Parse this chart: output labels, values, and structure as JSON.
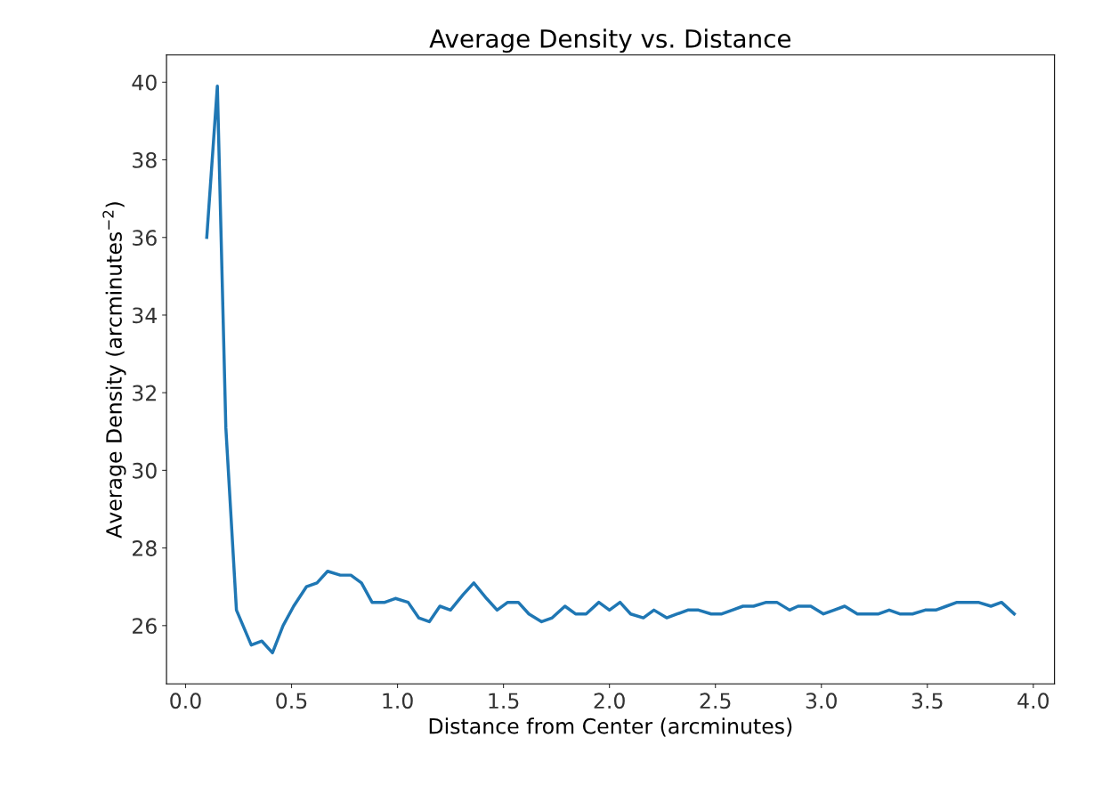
{
  "chart_data": {
    "type": "line",
    "title": "Average Density vs. Distance",
    "xlabel": "Distance from Center (arcminutes)",
    "ylabel": "Average Density (arcminutes$^{−2}$)",
    "xlim": [
      -0.09,
      4.1
    ],
    "ylim": [
      24.5,
      40.7
    ],
    "xticks": [
      {
        "value": 0,
        "label": "0.0"
      },
      0.5,
      {
        "value": 1,
        "label": "1.0"
      },
      1.5,
      {
        "value": 2,
        "label": "2.0"
      },
      2.5,
      {
        "value": 3,
        "label": "3.0"
      },
      3.5,
      {
        "value": 4,
        "label": "4.0"
      }
    ],
    "yticks": [
      26,
      28,
      30,
      32,
      34,
      36,
      38,
      40
    ],
    "grid": false,
    "series": [
      {
        "color": "#1f77b4",
        "x": [
          0.1,
          0.15,
          0.19,
          0.24,
          0.31,
          0.36,
          0.41,
          0.46,
          0.51,
          0.57,
          0.62,
          0.67,
          0.73,
          0.78,
          0.83,
          0.88,
          0.94,
          0.99,
          1.05,
          1.1,
          1.15,
          1.2,
          1.25,
          1.31,
          1.36,
          1.42,
          1.47,
          1.52,
          1.57,
          1.62,
          1.68,
          1.73,
          1.79,
          1.84,
          1.89,
          1.95,
          2.0,
          2.05,
          2.1,
          2.16,
          2.21,
          2.27,
          2.32,
          2.37,
          2.42,
          2.48,
          2.53,
          2.58,
          2.63,
          2.68,
          2.74,
          2.79,
          2.85,
          2.89,
          2.95,
          3.01,
          3.06,
          3.11,
          3.17,
          3.22,
          3.27,
          3.32,
          3.37,
          3.43,
          3.49,
          3.54,
          3.59,
          3.64,
          3.69,
          3.74,
          3.8,
          3.85,
          3.91
        ],
        "values": [
          36.0,
          39.9,
          31.1,
          26.4,
          25.5,
          25.6,
          25.3,
          26.0,
          26.5,
          27.0,
          27.1,
          27.4,
          27.3,
          27.3,
          27.1,
          26.6,
          26.6,
          26.7,
          26.6,
          26.2,
          26.1,
          26.5,
          26.4,
          26.8,
          27.1,
          26.7,
          26.4,
          26.6,
          26.6,
          26.3,
          26.1,
          26.2,
          26.5,
          26.3,
          26.3,
          26.6,
          26.4,
          26.6,
          26.3,
          26.2,
          26.4,
          26.2,
          26.3,
          26.4,
          26.4,
          26.3,
          26.3,
          26.4,
          26.5,
          26.5,
          26.6,
          26.6,
          26.4,
          26.5,
          26.5,
          26.3,
          26.4,
          26.5,
          26.3,
          26.3,
          26.3,
          26.4,
          26.3,
          26.3,
          26.4,
          26.4,
          26.5,
          26.6,
          26.6,
          26.6,
          26.5,
          26.6,
          26.3
        ]
      }
    ]
  }
}
